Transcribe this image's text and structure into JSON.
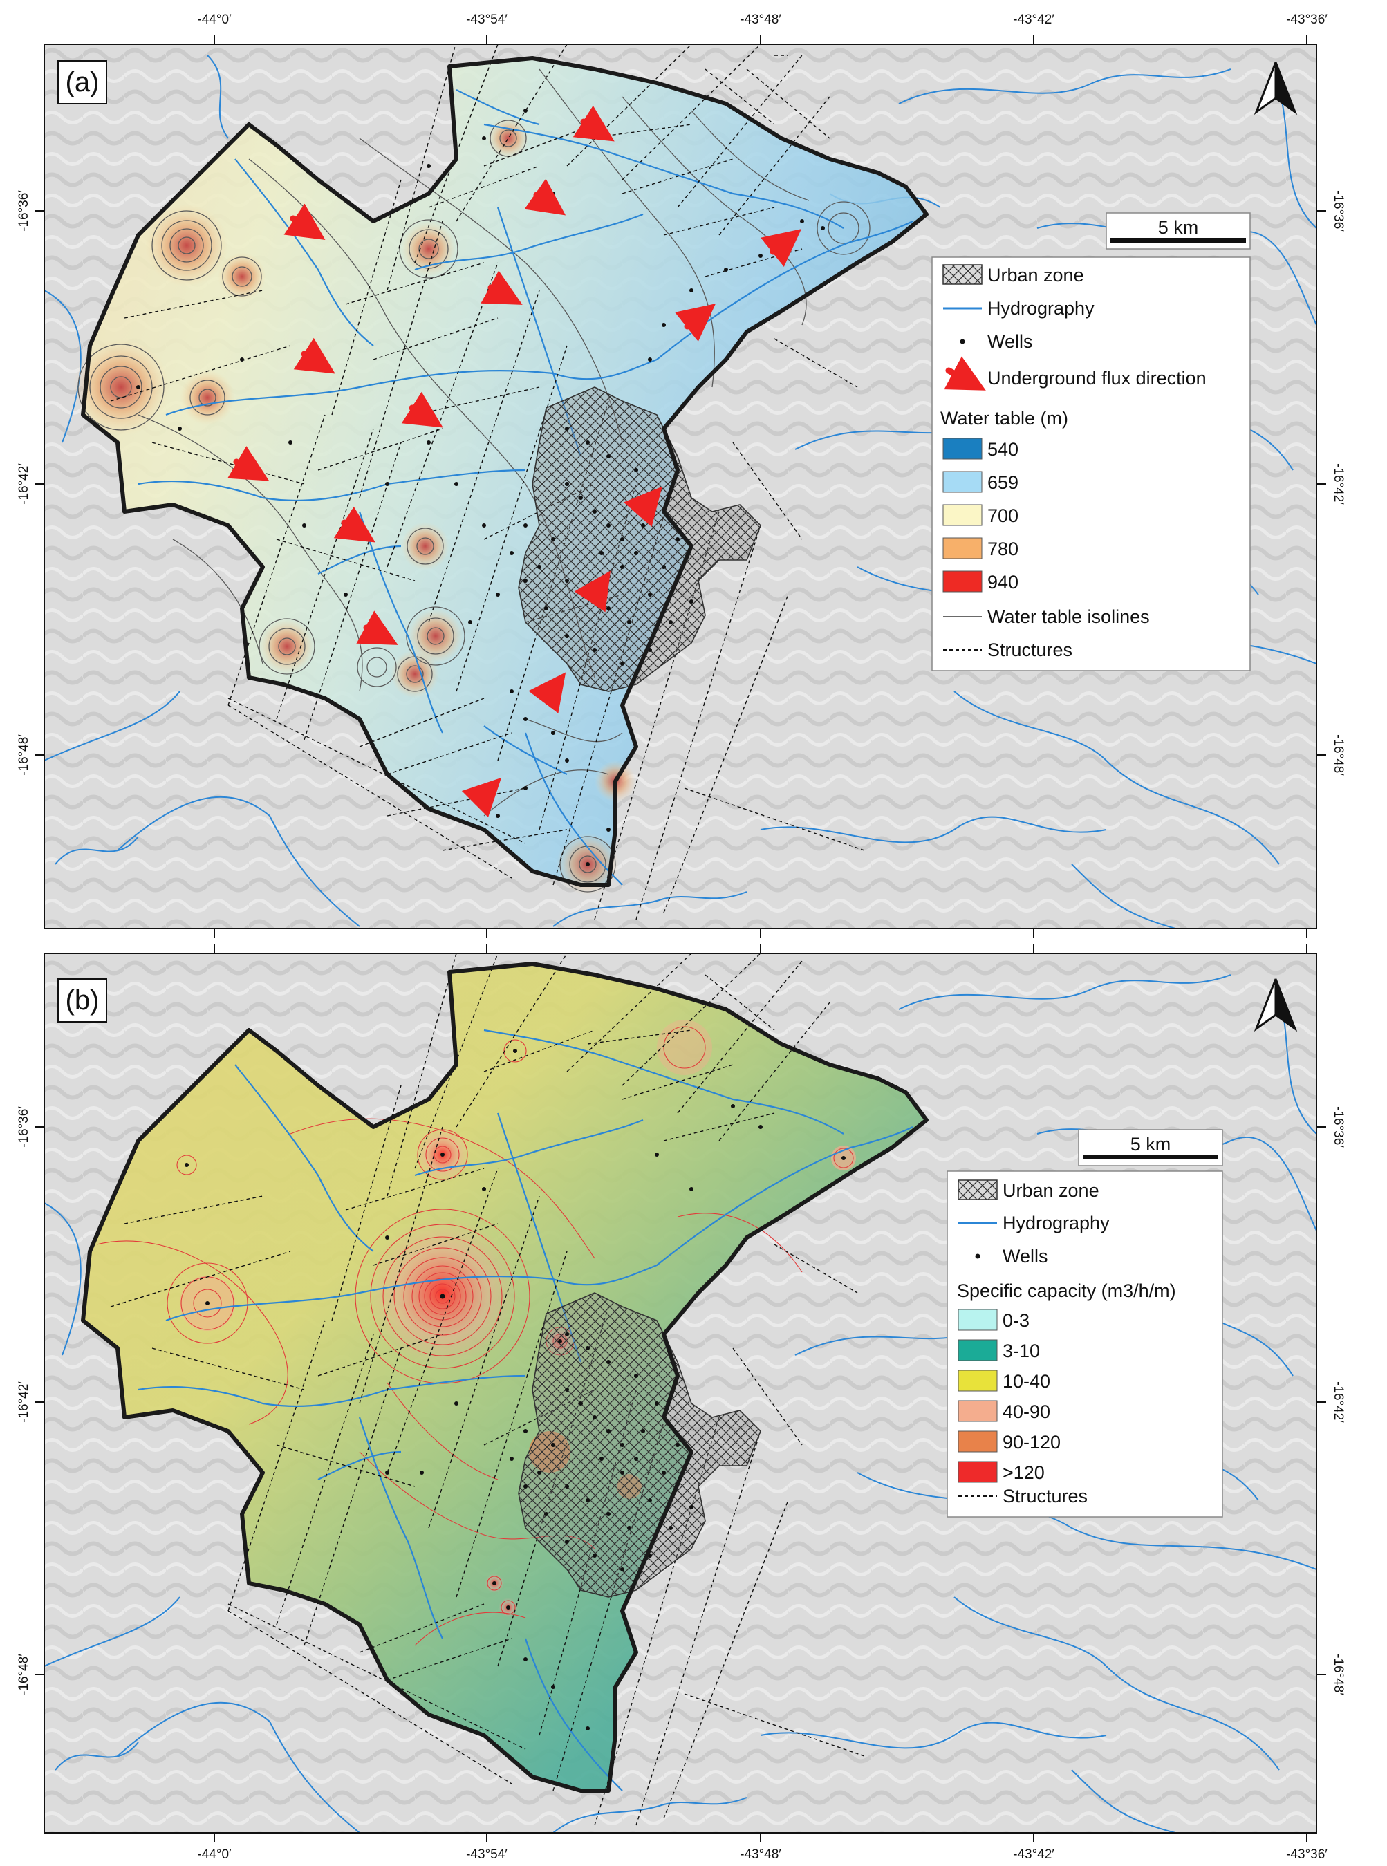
{
  "panel_a": {
    "label": "(a)",
    "scale_bar": "5 km",
    "lon_ticks": [
      "-44°0′",
      "-43°54′",
      "-43°48′",
      "-43°42′",
      "-43°36′"
    ],
    "lat_ticks": [
      "-16°36′",
      "-16°42′",
      "-16°48′"
    ],
    "legend": {
      "items": [
        {
          "symbol": "hatch",
          "label": "Urban zone"
        },
        {
          "symbol": "blue-line",
          "label": "Hydrography"
        },
        {
          "symbol": "dot",
          "label": "Wells"
        },
        {
          "symbol": "red-arrow",
          "label": "Underground flux direction"
        }
      ],
      "title": "Water table (m)",
      "classes": [
        {
          "label": "540",
          "color": "#1a7fc0"
        },
        {
          "label": "659",
          "color": "#a6dbf5"
        },
        {
          "label": "700",
          "color": "#fbf6c6"
        },
        {
          "label": "780",
          "color": "#f7b06a"
        },
        {
          "label": "940",
          "color": "#ee2a24"
        }
      ],
      "after": [
        {
          "symbol": "gray-line",
          "label": "Water table isolines"
        },
        {
          "symbol": "dashed-line",
          "label": "Structures"
        }
      ]
    }
  },
  "panel_b": {
    "label": "(b)",
    "scale_bar": "5 km",
    "lon_ticks": [
      "-44°0′",
      "-43°54′",
      "-43°48′",
      "-43°42′",
      "-43°36′"
    ],
    "lat_ticks": [
      "-16°36′",
      "-16°42′",
      "-16°48′"
    ],
    "legend": {
      "items": [
        {
          "symbol": "hatch",
          "label": "Urban zone"
        },
        {
          "symbol": "blue-line",
          "label": "Hydrography"
        },
        {
          "symbol": "dot",
          "label": "Wells"
        }
      ],
      "title": "Specific capacity (m3/h/m)",
      "classes": [
        {
          "label": "0-3",
          "color": "#b8f3ef"
        },
        {
          "label": "3-10",
          "color": "#1bab97"
        },
        {
          "label": "10-40",
          "color": "#e8e23a"
        },
        {
          "label": "40-90",
          "color": "#f4ad8e"
        },
        {
          "label": "90-120",
          "color": "#e8824a"
        },
        {
          "label": ">120",
          "color": "#ee2a2a"
        }
      ],
      "after": [
        {
          "symbol": "dashed-line",
          "label": "Structures"
        }
      ]
    }
  },
  "colors": {
    "hydrography": "#2b86d6",
    "flux_arrow": "#ee2222",
    "basin_border": "#1a1a1a",
    "hillshade": "#d9d9d9"
  }
}
